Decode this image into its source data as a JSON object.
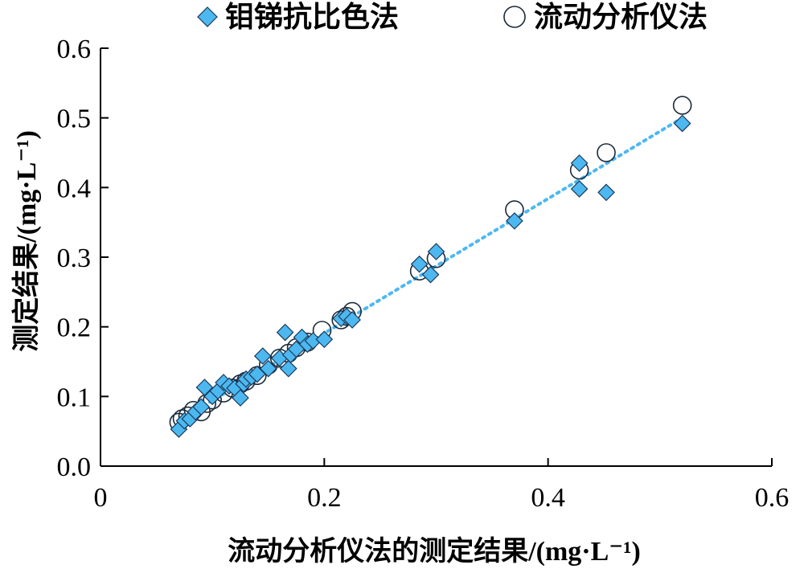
{
  "chart_data": {
    "type": "scatter",
    "legend": {
      "position": "top",
      "entries": [
        {
          "label": "钼锑抗比色法",
          "marker": "diamond",
          "color": "#4db8f0"
        },
        {
          "label": "流动分析仪法",
          "marker": "circle",
          "color": "#ffffff"
        }
      ]
    },
    "xlabel": "流动分析仪法的测定结果/(mg·L⁻¹)",
    "ylabel": "测定结果/(mg·L⁻¹)",
    "xlim": [
      0,
      0.6
    ],
    "ylim": [
      0,
      0.6
    ],
    "x_ticks": [
      0,
      0.2,
      0.4,
      0.6
    ],
    "x_tick_labels": [
      "0",
      "0.2",
      "0.4",
      "0.6"
    ],
    "y_ticks": [
      0,
      0.1,
      0.2,
      0.3,
      0.4,
      0.5,
      0.6
    ],
    "y_tick_labels": [
      "0.0",
      "0.1",
      "0.2",
      "0.3",
      "0.4",
      "0.5",
      "0.6"
    ],
    "grid": false,
    "trendline": {
      "style": "dotted",
      "color": "#4db8f0",
      "from": [
        0.07,
        0.065
      ],
      "to": [
        0.52,
        0.5
      ]
    },
    "series": [
      {
        "name": "钼锑抗比色法",
        "marker": "diamond",
        "color": "#4db8f0",
        "points": [
          [
            0.07,
            0.053
          ],
          [
            0.075,
            0.065
          ],
          [
            0.08,
            0.068
          ],
          [
            0.085,
            0.078
          ],
          [
            0.09,
            0.085
          ],
          [
            0.093,
            0.113
          ],
          [
            0.1,
            0.1
          ],
          [
            0.105,
            0.108
          ],
          [
            0.11,
            0.12
          ],
          [
            0.115,
            0.115
          ],
          [
            0.12,
            0.112
          ],
          [
            0.125,
            0.098
          ],
          [
            0.128,
            0.118
          ],
          [
            0.13,
            0.125
          ],
          [
            0.135,
            0.128
          ],
          [
            0.14,
            0.132
          ],
          [
            0.145,
            0.158
          ],
          [
            0.15,
            0.14
          ],
          [
            0.16,
            0.155
          ],
          [
            0.165,
            0.192
          ],
          [
            0.168,
            0.14
          ],
          [
            0.17,
            0.16
          ],
          [
            0.175,
            0.168
          ],
          [
            0.18,
            0.185
          ],
          [
            0.185,
            0.175
          ],
          [
            0.19,
            0.18
          ],
          [
            0.2,
            0.182
          ],
          [
            0.215,
            0.212
          ],
          [
            0.22,
            0.215
          ],
          [
            0.225,
            0.21
          ],
          [
            0.285,
            0.29
          ],
          [
            0.295,
            0.275
          ],
          [
            0.3,
            0.308
          ],
          [
            0.37,
            0.352
          ],
          [
            0.428,
            0.435
          ],
          [
            0.428,
            0.398
          ],
          [
            0.452,
            0.393
          ],
          [
            0.52,
            0.492
          ]
        ]
      },
      {
        "name": "流动分析仪法",
        "marker": "circle",
        "color": "#ffffff",
        "points": [
          [
            0.07,
            0.063
          ],
          [
            0.073,
            0.068
          ],
          [
            0.078,
            0.072
          ],
          [
            0.083,
            0.08
          ],
          [
            0.09,
            0.078
          ],
          [
            0.095,
            0.09
          ],
          [
            0.1,
            0.095
          ],
          [
            0.11,
            0.105
          ],
          [
            0.118,
            0.112
          ],
          [
            0.125,
            0.118
          ],
          [
            0.13,
            0.122
          ],
          [
            0.14,
            0.13
          ],
          [
            0.15,
            0.145
          ],
          [
            0.16,
            0.155
          ],
          [
            0.168,
            0.162
          ],
          [
            0.175,
            0.17
          ],
          [
            0.185,
            0.178
          ],
          [
            0.198,
            0.195
          ],
          [
            0.215,
            0.21
          ],
          [
            0.22,
            0.215
          ],
          [
            0.225,
            0.222
          ],
          [
            0.285,
            0.28
          ],
          [
            0.3,
            0.298
          ],
          [
            0.37,
            0.368
          ],
          [
            0.428,
            0.425
          ],
          [
            0.452,
            0.45
          ],
          [
            0.52,
            0.518
          ]
        ]
      }
    ]
  }
}
